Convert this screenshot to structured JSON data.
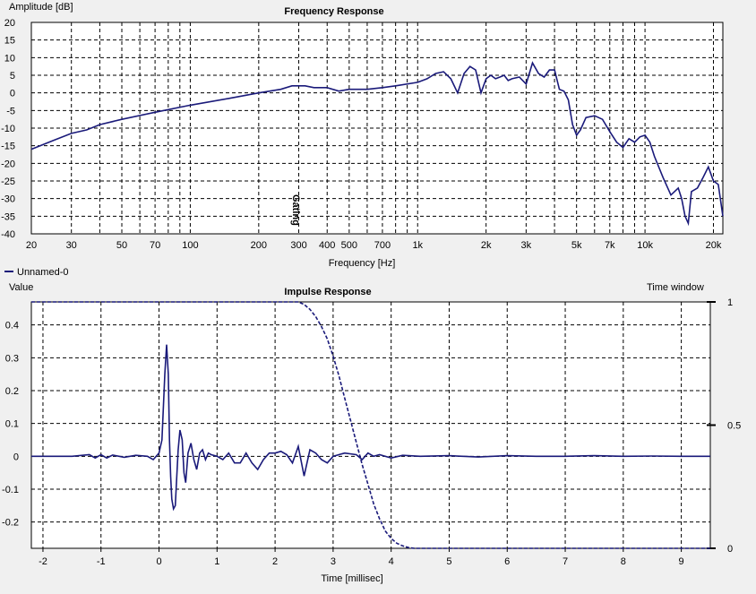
{
  "series_color": "#1a1a7a",
  "window_color": "#1a1a7a",
  "legend": {
    "label": "Unnamed-0"
  },
  "chart_data": [
    {
      "type": "line",
      "title": "Frequency Response",
      "xlabel": "Frequency [Hz]",
      "ylabel": "Amplitude [dB]",
      "xscale": "log",
      "xlim": [
        20,
        22000
      ],
      "ylim": [
        -40,
        20
      ],
      "xticks": [
        20,
        30,
        50,
        70,
        100,
        200,
        300,
        400,
        500,
        700,
        1000,
        2000,
        3000,
        5000,
        7000,
        10000,
        20000
      ],
      "xtick_labels": [
        "20",
        "30",
        "50",
        "70",
        "100",
        "200",
        "300",
        "400",
        "500",
        "700",
        "1k",
        "2k",
        "3k",
        "5k",
        "7k",
        "10k",
        "20k"
      ],
      "yticks": [
        20,
        15,
        10,
        5,
        0,
        -5,
        -10,
        -15,
        -20,
        -25,
        -30,
        -35,
        -40
      ],
      "grid": true,
      "marker_label": "Gating",
      "marker_x": 290,
      "series": [
        {
          "name": "Unnamed-0",
          "x": [
            20,
            25,
            30,
            35,
            40,
            50,
            70,
            100,
            150,
            200,
            250,
            280,
            320,
            350,
            400,
            450,
            500,
            600,
            700,
            800,
            1000,
            1100,
            1200,
            1300,
            1400,
            1500,
            1600,
            1700,
            1800,
            1900,
            2000,
            2100,
            2200,
            2300,
            2400,
            2500,
            2600,
            2800,
            3000,
            3200,
            3400,
            3600,
            3800,
            4000,
            4200,
            4400,
            4600,
            4800,
            5000,
            5200,
            5500,
            6000,
            6500,
            7000,
            7500,
            8000,
            8500,
            9000,
            9500,
            10000,
            10500,
            11000,
            12000,
            13000,
            14000,
            14500,
            15000,
            15500,
            16000,
            17000,
            18000,
            19000,
            20000,
            21000,
            22000
          ],
          "y": [
            -16,
            -13.5,
            -11.5,
            -10.5,
            -9,
            -7.5,
            -5.5,
            -3.5,
            -1.5,
            0,
            1,
            2,
            2,
            1.5,
            1.5,
            0.5,
            1,
            1,
            1.5,
            2,
            3,
            4,
            5.5,
            6,
            4,
            0,
            5.5,
            7.5,
            6.5,
            0,
            4,
            5,
            4,
            4.5,
            5,
            3.5,
            4,
            4.5,
            2.5,
            8.5,
            5.5,
            4.5,
            6.5,
            6.5,
            1,
            0.5,
            -2,
            -9,
            -12,
            -10.5,
            -7,
            -6.5,
            -7.5,
            -11,
            -14,
            -15.5,
            -13,
            -14,
            -12.5,
            -12,
            -14,
            -18,
            -24,
            -29,
            -27,
            -30,
            -35,
            -37,
            -28,
            -27,
            -24,
            -21,
            -25,
            -26,
            -35
          ]
        }
      ]
    },
    {
      "type": "line",
      "title": "Impulse Response",
      "xlabel": "Time [millisec]",
      "ylabel": "Value",
      "y2label": "Time window",
      "xlim": [
        -2.2,
        9.5
      ],
      "ylim": [
        -0.28,
        0.47
      ],
      "y2lim": [
        0,
        1
      ],
      "xticks": [
        -2,
        -1,
        0,
        1,
        2,
        3,
        4,
        5,
        6,
        7,
        8,
        9
      ],
      "yticks": [
        0.4,
        0.3,
        0.2,
        0.1,
        0,
        -0.1,
        -0.2
      ],
      "y2ticks": [
        1,
        0.5,
        0
      ],
      "grid": true,
      "series": [
        {
          "name": "Unnamed-0",
          "x": [
            -2.2,
            -1.5,
            -1.2,
            -1.1,
            -1.0,
            -0.9,
            -0.8,
            -0.6,
            -0.4,
            -0.2,
            -0.1,
            0.0,
            0.05,
            0.1,
            0.13,
            0.16,
            0.18,
            0.2,
            0.22,
            0.25,
            0.28,
            0.3,
            0.33,
            0.36,
            0.4,
            0.43,
            0.46,
            0.5,
            0.55,
            0.6,
            0.65,
            0.7,
            0.75,
            0.8,
            0.85,
            0.9,
            1.0,
            1.1,
            1.2,
            1.3,
            1.4,
            1.5,
            1.6,
            1.7,
            1.8,
            1.9,
            2.0,
            2.1,
            2.2,
            2.3,
            2.4,
            2.5,
            2.6,
            2.7,
            2.8,
            2.9,
            3.0,
            3.2,
            3.4,
            3.5,
            3.6,
            3.7,
            3.8,
            4.0,
            4.2,
            4.5,
            5.0,
            5.5,
            6.0,
            6.5,
            7.0,
            7.5,
            8.0,
            8.5,
            9.0,
            9.5
          ],
          "y": [
            0,
            0,
            0.005,
            -0.005,
            0.005,
            -0.005,
            0.004,
            -0.003,
            0.003,
            0,
            -0.01,
            0.01,
            0.05,
            0.25,
            0.34,
            0.25,
            0.05,
            -0.06,
            -0.13,
            -0.16,
            -0.15,
            -0.08,
            0.02,
            0.08,
            0.05,
            -0.05,
            -0.08,
            0.01,
            0.04,
            -0.01,
            -0.04,
            0.01,
            0.02,
            -0.01,
            0.01,
            0.005,
            0,
            -0.01,
            0.01,
            -0.02,
            -0.02,
            0.01,
            -0.02,
            -0.04,
            -0.01,
            0.01,
            0.01,
            0.015,
            0.005,
            -0.02,
            0.03,
            -0.06,
            0.02,
            0.01,
            -0.01,
            -0.02,
            0,
            0.01,
            0.005,
            -0.01,
            0.01,
            0,
            0.005,
            -0.005,
            0.003,
            0,
            0.002,
            -0.002,
            0.002,
            0,
            0,
            0.002,
            0,
            0.001,
            0,
            0
          ]
        },
        {
          "name": "Time window",
          "axis": "y2",
          "style": "dashed",
          "x": [
            -2.2,
            2.4,
            2.5,
            2.6,
            2.7,
            2.8,
            2.9,
            3.0,
            3.1,
            3.2,
            3.3,
            3.4,
            3.5,
            3.6,
            3.7,
            3.8,
            3.9,
            4.0,
            4.1,
            4.2,
            4.3,
            4.4,
            9.5
          ],
          "y": [
            1,
            1,
            0.99,
            0.97,
            0.94,
            0.9,
            0.85,
            0.78,
            0.7,
            0.61,
            0.52,
            0.43,
            0.34,
            0.26,
            0.18,
            0.12,
            0.07,
            0.04,
            0.02,
            0.01,
            0.003,
            0,
            0
          ]
        }
      ]
    }
  ]
}
